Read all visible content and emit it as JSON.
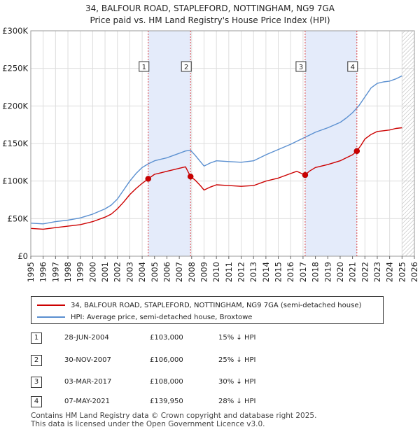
{
  "chart_data": {
    "type": "line",
    "title": "34, BALFOUR ROAD, STAPLEFORD, NOTTINGHAM, NG9 7GA",
    "subtitle": "Price paid vs. HM Land Registry's House Price Index (HPI)",
    "xlabel": "",
    "ylabel": "",
    "xlim": [
      1995,
      2026
    ],
    "ylim": [
      0,
      300000
    ],
    "grid": true,
    "x_ticks": [
      "1995",
      "1996",
      "1997",
      "1998",
      "1999",
      "2000",
      "2001",
      "2002",
      "2003",
      "2004",
      "2005",
      "2006",
      "2007",
      "2008",
      "2009",
      "2010",
      "2011",
      "2012",
      "2013",
      "2014",
      "2015",
      "2016",
      "2017",
      "2018",
      "2019",
      "2020",
      "2021",
      "2022",
      "2023",
      "2024",
      "2025",
      "2026"
    ],
    "y_ticks": [
      {
        "value": 0,
        "label": "£0"
      },
      {
        "value": 50000,
        "label": "£50K"
      },
      {
        "value": 100000,
        "label": "£100K"
      },
      {
        "value": 150000,
        "label": "£150K"
      },
      {
        "value": 200000,
        "label": "£200K"
      },
      {
        "value": 250000,
        "label": "£250K"
      },
      {
        "value": 300000,
        "label": "£300K"
      }
    ],
    "shaded_periods": [
      [
        2004.49,
        2007.91
      ],
      [
        2017.17,
        2021.35
      ]
    ],
    "hatched_from": 2025.0,
    "series": [
      {
        "name": "34, BALFOUR ROAD, STAPLEFORD, NOTTINGHAM, NG9 7GA (semi-detached house)",
        "color": "#cc0000",
        "x": [
          1995.0,
          1996.0,
          1997.0,
          1998.0,
          1999.0,
          2000.0,
          2001.0,
          2001.5,
          2002.0,
          2002.5,
          2003.0,
          2003.5,
          2004.0,
          2004.49,
          2005.0,
          2005.5,
          2006.0,
          2006.5,
          2007.0,
          2007.5,
          2007.91,
          2008.3,
          2008.7,
          2009.0,
          2009.5,
          2010.0,
          2011.0,
          2012.0,
          2013.0,
          2014.0,
          2015.0,
          2016.0,
          2016.5,
          2017.17,
          2017.5,
          2018.0,
          2019.0,
          2020.0,
          2020.5,
          2021.0,
          2021.35,
          2021.7,
          2022.0,
          2022.5,
          2023.0,
          2023.5,
          2024.0,
          2024.5,
          2025.0
        ],
        "values": [
          37000,
          36000,
          38000,
          40000,
          42000,
          46000,
          52000,
          56000,
          63000,
          72000,
          82000,
          90000,
          97000,
          103000,
          109000,
          111000,
          113000,
          115000,
          117000,
          119000,
          106000,
          101000,
          94000,
          88000,
          92000,
          95000,
          94000,
          93000,
          94000,
          100000,
          104000,
          110000,
          113000,
          108000,
          113000,
          118000,
          122000,
          127000,
          131000,
          135000,
          139950,
          148000,
          156000,
          162000,
          166000,
          167000,
          168000,
          170000,
          171000
        ]
      },
      {
        "name": "HPI: Average price, semi-detached house, Broxtowe",
        "color": "#5a8fd0",
        "x": [
          1995.0,
          1996.0,
          1997.0,
          1998.0,
          1999.0,
          2000.0,
          2001.0,
          2001.5,
          2002.0,
          2002.5,
          2003.0,
          2003.5,
          2004.0,
          2004.5,
          2005.0,
          2005.5,
          2006.0,
          2006.5,
          2007.0,
          2007.5,
          2007.91,
          2008.3,
          2008.7,
          2009.0,
          2009.5,
          2010.0,
          2011.0,
          2012.0,
          2013.0,
          2014.0,
          2015.0,
          2016.0,
          2016.5,
          2017.0,
          2017.5,
          2018.0,
          2019.0,
          2020.0,
          2020.5,
          2021.0,
          2021.5,
          2022.0,
          2022.5,
          2023.0,
          2023.5,
          2024.0,
          2024.5,
          2025.0
        ],
        "values": [
          44000,
          43000,
          46000,
          48000,
          51000,
          56000,
          63000,
          68000,
          76000,
          88000,
          100000,
          110000,
          118000,
          123000,
          127000,
          129000,
          131000,
          134000,
          137000,
          140000,
          141000,
          134000,
          126000,
          120000,
          124000,
          127000,
          126000,
          125000,
          127000,
          135000,
          142000,
          149000,
          153000,
          157000,
          161000,
          165000,
          171000,
          178000,
          184000,
          191000,
          200000,
          212000,
          224000,
          230000,
          232000,
          233000,
          236000,
          240000
        ]
      }
    ],
    "markers": [
      {
        "label": "1",
        "x": 2004.49,
        "value": 103000
      },
      {
        "label": "2",
        "x": 2007.91,
        "value": 106000
      },
      {
        "label": "3",
        "x": 2017.17,
        "value": 108000
      },
      {
        "label": "4",
        "x": 2021.35,
        "value": 139950
      }
    ],
    "legend": [
      {
        "label": "34, BALFOUR ROAD, STAPLEFORD, NOTTINGHAM, NG9 7GA (semi-detached house)",
        "color": "#cc0000"
      },
      {
        "label": "HPI: Average price, semi-detached house, Broxtowe",
        "color": "#5a8fd0"
      }
    ],
    "transactions": [
      {
        "num": "1",
        "date": "28-JUN-2004",
        "price": "£103,000",
        "hpi": "15% ↓ HPI"
      },
      {
        "num": "2",
        "date": "30-NOV-2007",
        "price": "£106,000",
        "hpi": "25% ↓ HPI"
      },
      {
        "num": "3",
        "date": "03-MAR-2017",
        "price": "£108,000",
        "hpi": "30% ↓ HPI"
      },
      {
        "num": "4",
        "date": "07-MAY-2021",
        "price": "£139,950",
        "hpi": "28% ↓ HPI"
      }
    ],
    "footer": [
      "Contains HM Land Registry data © Crown copyright and database right 2025.",
      "This data is licensed under the Open Government Licence v3.0."
    ]
  }
}
